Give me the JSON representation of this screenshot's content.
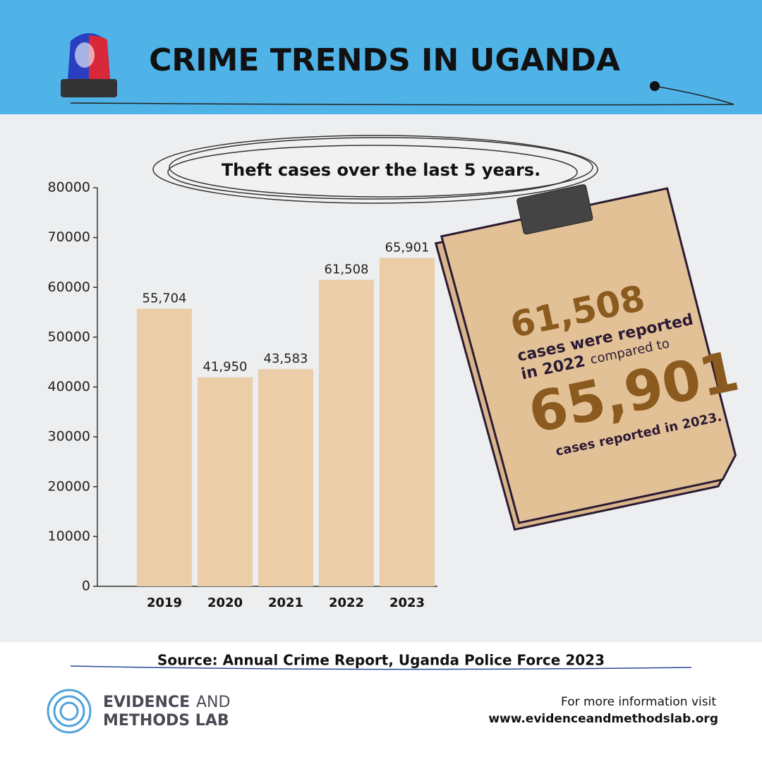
{
  "chart_data": {
    "type": "bar",
    "title": "CRIME TRENDS IN UGANDA",
    "subtitle": "Theft cases over the last 5 years.",
    "categories": [
      "2019",
      "2020",
      "2021",
      "2022",
      "2023"
    ],
    "values": [
      55704,
      41950,
      43583,
      61508,
      65901
    ],
    "value_labels": [
      "55,704",
      "41,950",
      "43,583",
      "61,508",
      "65,901"
    ],
    "color": "#ebcda8",
    "ylim": [
      0,
      80000
    ],
    "yticks": [
      0,
      10000,
      20000,
      30000,
      40000,
      50000,
      60000,
      70000,
      80000
    ]
  },
  "callout": {
    "number_1": "61,508",
    "line_1": "cases were reported",
    "line_2a": "in 2022",
    "line_2b": "compared to",
    "number_2": "65,901",
    "line_3": "cases reported in 2023."
  },
  "source": "Source: Annual Crime Report, Uganda Police Force 2023",
  "brand": {
    "line_1a": "EVIDENCE",
    "line_1b": "AND",
    "line_2": "METHODS LAB"
  },
  "footer": {
    "line_1": "For more information visit",
    "url": "www.evidenceandmethodslab.org"
  }
}
